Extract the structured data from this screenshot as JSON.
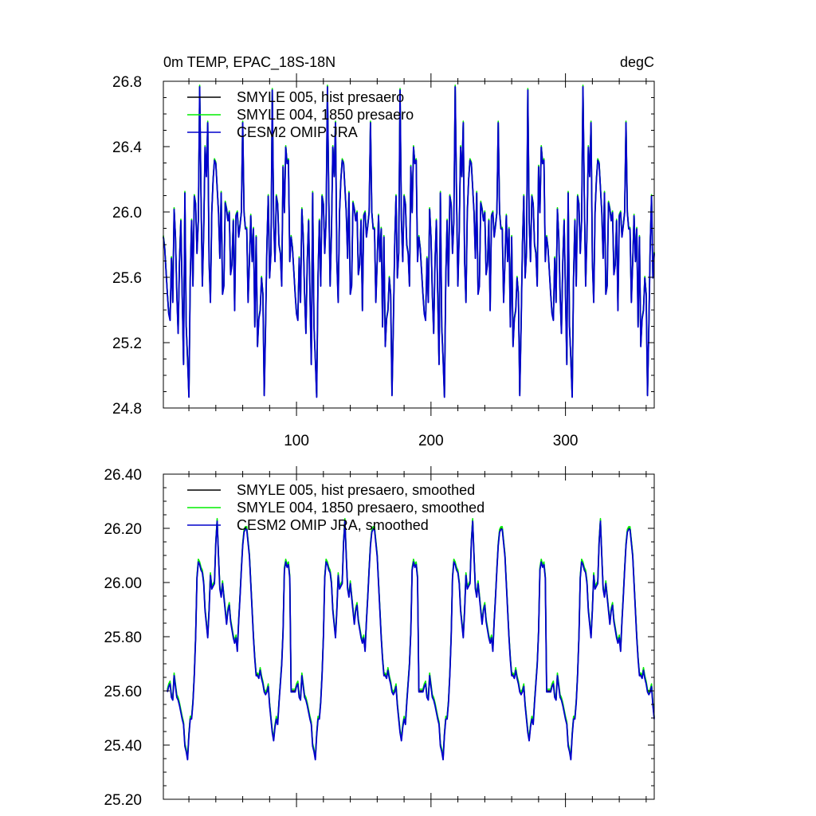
{
  "chart_data": [
    {
      "type": "line",
      "title": "0m TEMP, EPAC_18S-18N",
      "units": "degC",
      "xlim": [
        1,
        366
      ],
      "ylim": [
        24.8,
        26.8
      ],
      "x_ticks": [
        100,
        200,
        300
      ],
      "x_tick_labels": [
        "100",
        "200",
        "300"
      ],
      "y_ticks": [
        24.8,
        25.2,
        25.6,
        26.0,
        26.4,
        26.8
      ],
      "y_tick_labels": [
        "24.8",
        "25.2",
        "25.6",
        "26.0",
        "26.4",
        "26.8"
      ],
      "legend_position": "top-left",
      "series": [
        {
          "name": "SMYLE 005, hist presaero",
          "color": "#000000",
          "anchors": [
            [
              1,
              25.85
            ],
            [
              2,
              25.78
            ],
            [
              4,
              25.5
            ],
            [
              5,
              25.38
            ],
            [
              6,
              25.34
            ],
            [
              7,
              25.72
            ],
            [
              8,
              25.45
            ],
            [
              9,
              26.02
            ],
            [
              10,
              25.85
            ],
            [
              11,
              25.5
            ],
            [
              12,
              25.26
            ],
            [
              13,
              25.7
            ],
            [
              14,
              25.95
            ],
            [
              15,
              25.5
            ],
            [
              16,
              25.07
            ],
            [
              17,
              26.12
            ],
            [
              18,
              25.3
            ],
            [
              19,
              25.1
            ],
            [
              20,
              24.87
            ],
            [
              21,
              25.6
            ],
            [
              22,
              25.95
            ],
            [
              23,
              25.55
            ],
            [
              24,
              26.1
            ],
            [
              25,
              26.05
            ],
            [
              26,
              25.75
            ],
            [
              27,
              25.95
            ],
            [
              28,
              26.77
            ],
            [
              29,
              26.1
            ],
            [
              30,
              25.55
            ],
            [
              31,
              25.88
            ],
            [
              32,
              26.4
            ],
            [
              33,
              26.22
            ],
            [
              34,
              26.55
            ],
            [
              35,
              25.7
            ],
            [
              36,
              25.45
            ],
            [
              37,
              26.0
            ],
            [
              38,
              26.2
            ],
            [
              39,
              26.32
            ],
            [
              40,
              26.3
            ],
            [
              41,
              26.15
            ],
            [
              42,
              26.0
            ],
            [
              43,
              25.72
            ],
            [
              44,
              26.12
            ],
            [
              45,
              25.5
            ],
            [
              46,
              25.55
            ],
            [
              47,
              26.06
            ],
            [
              48,
              26.02
            ],
            [
              49,
              25.95
            ],
            [
              50,
              26.0
            ],
            [
              51,
              25.62
            ],
            [
              52,
              25.68
            ],
            [
              53,
              25.95
            ],
            [
              54,
              25.4
            ],
            [
              55,
              25.98
            ],
            [
              56,
              26.0
            ],
            [
              57,
              25.85
            ],
            [
              58,
              25.92
            ],
            [
              59,
              26.0
            ],
            [
              60,
              26.55
            ],
            [
              61,
              26.0
            ],
            [
              62,
              25.9
            ],
            [
              63,
              25.9
            ],
            [
              64,
              25.45
            ],
            [
              65,
              25.7
            ],
            [
              66,
              25.98
            ],
            [
              67,
              25.7
            ],
            [
              68,
              25.9
            ],
            [
              69,
              25.3
            ],
            [
              70,
              25.85
            ],
            [
              71,
              25.18
            ],
            [
              72,
              25.35
            ],
            [
              73,
              25.4
            ],
            [
              74,
              25.6
            ],
            [
              75,
              25.5
            ],
            [
              76,
              24.88
            ],
            [
              77,
              25.3
            ],
            [
              78,
              25.8
            ],
            [
              79,
              26.1
            ],
            [
              80,
              25.6
            ],
            [
              81,
              25.75
            ],
            [
              82,
              26.75
            ],
            [
              83,
              25.95
            ],
            [
              84,
              25.7
            ],
            [
              85,
              26.1
            ],
            [
              86,
              26.05
            ],
            [
              87,
              25.8
            ],
            [
              88,
              25.75
            ],
            [
              89,
              25.55
            ],
            [
              90,
              26.28
            ],
            [
              91,
              26.0
            ],
            [
              92,
              26.4
            ],
            [
              93,
              26.3
            ],
            [
              94,
              26.32
            ],
            [
              95,
              25.7
            ]
          ]
        },
        {
          "name": "SMYLE 004, 1850 presaero",
          "color": "#00ee00"
        },
        {
          "name": "CESM2 OMIP JRA",
          "color": "#0000cc"
        }
      ]
    },
    {
      "type": "line",
      "xlim": [
        1,
        366
      ],
      "ylim": [
        25.2,
        26.4
      ],
      "x_ticks": [
        100,
        200,
        300
      ],
      "y_ticks": [
        25.2,
        25.4,
        25.6,
        25.8,
        26.0,
        26.2,
        26.4
      ],
      "y_tick_labels": [
        "25.20",
        "25.40",
        "25.60",
        "25.80",
        "26.00",
        "26.20",
        "26.40"
      ],
      "legend_position": "top-left",
      "series": [
        {
          "name": "SMYLE 005, hist presaero, smoothed",
          "color": "#000000",
          "anchors": [
            [
              4,
              25.6
            ],
            [
              5,
              25.62
            ],
            [
              6,
              25.63
            ],
            [
              7,
              25.58
            ],
            [
              8,
              25.57
            ],
            [
              9,
              25.66
            ],
            [
              10,
              25.62
            ],
            [
              11,
              25.58
            ],
            [
              12,
              25.57
            ],
            [
              13,
              25.55
            ],
            [
              15,
              25.5
            ],
            [
              16,
              25.48
            ],
            [
              17,
              25.4
            ],
            [
              18,
              25.38
            ],
            [
              19,
              25.35
            ],
            [
              20,
              25.44
            ],
            [
              21,
              25.5
            ],
            [
              22,
              25.5
            ],
            [
              23,
              25.56
            ],
            [
              24,
              25.66
            ],
            [
              25,
              25.8
            ],
            [
              26,
              26.02
            ],
            [
              27,
              26.08
            ],
            [
              28,
              26.07
            ],
            [
              29,
              26.05
            ],
            [
              30,
              26.04
            ],
            [
              31,
              26.0
            ],
            [
              32,
              25.9
            ],
            [
              33,
              25.85
            ],
            [
              34,
              25.8
            ],
            [
              35,
              25.9
            ],
            [
              36,
              26.03
            ],
            [
              37,
              25.98
            ],
            [
              38,
              25.99
            ],
            [
              39,
              26.0
            ],
            [
              40,
              26.15
            ],
            [
              41,
              26.23
            ],
            [
              42,
              26.1
            ],
            [
              43,
              25.98
            ],
            [
              44,
              25.95
            ],
            [
              45,
              26.0
            ],
            [
              46,
              25.95
            ],
            [
              47,
              25.9
            ],
            [
              48,
              25.85
            ],
            [
              49,
              25.9
            ],
            [
              50,
              25.92
            ],
            [
              51,
              25.86
            ],
            [
              52,
              25.83
            ],
            [
              53,
              25.8
            ],
            [
              54,
              25.78
            ],
            [
              55,
              25.8
            ],
            [
              56,
              25.75
            ],
            [
              57,
              25.86
            ],
            [
              58,
              25.95
            ],
            [
              59,
              26.05
            ],
            [
              60,
              26.14
            ],
            [
              61,
              26.19
            ],
            [
              62,
              26.2
            ],
            [
              63,
              26.2
            ],
            [
              64,
              26.15
            ],
            [
              65,
              26.1
            ],
            [
              66,
              26.0
            ],
            [
              67,
              25.9
            ],
            [
              68,
              25.8
            ],
            [
              69,
              25.72
            ],
            [
              70,
              25.66
            ],
            [
              71,
              25.66
            ],
            [
              72,
              25.65
            ],
            [
              73,
              25.68
            ],
            [
              74,
              25.65
            ],
            [
              75,
              25.63
            ],
            [
              76,
              25.6
            ],
            [
              77,
              25.59
            ],
            [
              78,
              25.6
            ],
            [
              79,
              25.62
            ],
            [
              80,
              25.55
            ],
            [
              81,
              25.5
            ],
            [
              82,
              25.45
            ],
            [
              83,
              25.42
            ],
            [
              84,
              25.47
            ],
            [
              85,
              25.5
            ],
            [
              86,
              25.48
            ],
            [
              87,
              25.56
            ],
            [
              88,
              25.63
            ],
            [
              89,
              25.7
            ],
            [
              90,
              25.82
            ],
            [
              91,
              26.05
            ],
            [
              92,
              26.08
            ],
            [
              93,
              26.06
            ],
            [
              94,
              26.07
            ],
            [
              95,
              26.02
            ]
          ]
        },
        {
          "name": "SMYLE 004, 1850 presaero, smoothed",
          "color": "#00ee00"
        },
        {
          "name": "CESM2 OMIP JRA, smoothed",
          "color": "#0000cc"
        }
      ]
    }
  ]
}
